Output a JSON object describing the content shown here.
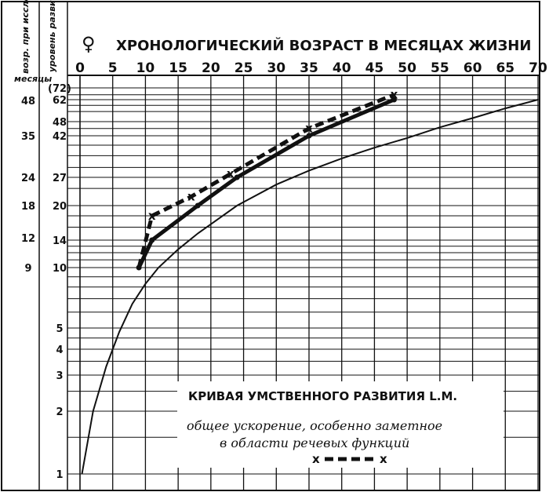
{
  "chart_data": {
    "type": "line",
    "title": "ХРОНОЛОГИЧЕСКИЙ ВОЗРАСТ В МЕСЯЦАХ ЖИЗНИ",
    "sex_symbol": "♀",
    "left_headers": {
      "age_col": "возр. при исследов.",
      "level_col": "уровень развития",
      "months": "месяцы"
    },
    "x_axis": {
      "min": 0,
      "max": 70,
      "ticks": [
        "0",
        "5",
        "10",
        "15",
        "20",
        "25",
        "30",
        "35",
        "40",
        "45",
        "50",
        "55",
        "60",
        "65",
        "70"
      ]
    },
    "level_ticks": [
      "(72)",
      "62",
      "48",
      "42",
      "27",
      "20",
      "14",
      "10",
      "5",
      "4",
      "3",
      "2",
      "1"
    ],
    "age_ticks": [
      "48",
      "35",
      "24",
      "18",
      "12",
      "9"
    ],
    "note": {
      "title": "КРИВАЯ УМСТВЕННОГО РАЗВИТИЯ L.M.",
      "line1": "общее ускорение, особенно заметное",
      "line2": "в области речевых функций",
      "legend_marker": "x"
    },
    "series": [
      {
        "style": "norm-thin",
        "x": [
          0.3,
          2,
          4,
          6,
          8,
          10,
          12,
          15,
          18,
          20,
          24,
          30,
          35,
          40,
          45,
          50,
          55,
          60,
          65,
          70
        ],
        "y": [
          1,
          2,
          3.3,
          4.8,
          6.6,
          8.3,
          10,
          12.5,
          15,
          16.5,
          20,
          25,
          29,
          33,
          37,
          41,
          45.5,
          50,
          56,
          62
        ]
      },
      {
        "style": "mental-solid",
        "marker": "dot",
        "x": [
          9,
          11,
          18,
          24,
          35,
          48
        ],
        "y": [
          10,
          14,
          20,
          27,
          42,
          62
        ]
      },
      {
        "style": "verbal-dashed",
        "marker": "x",
        "x": [
          9,
          11,
          17,
          23,
          35,
          48
        ],
        "y": [
          10,
          18,
          22,
          28,
          45,
          66
        ]
      }
    ]
  }
}
